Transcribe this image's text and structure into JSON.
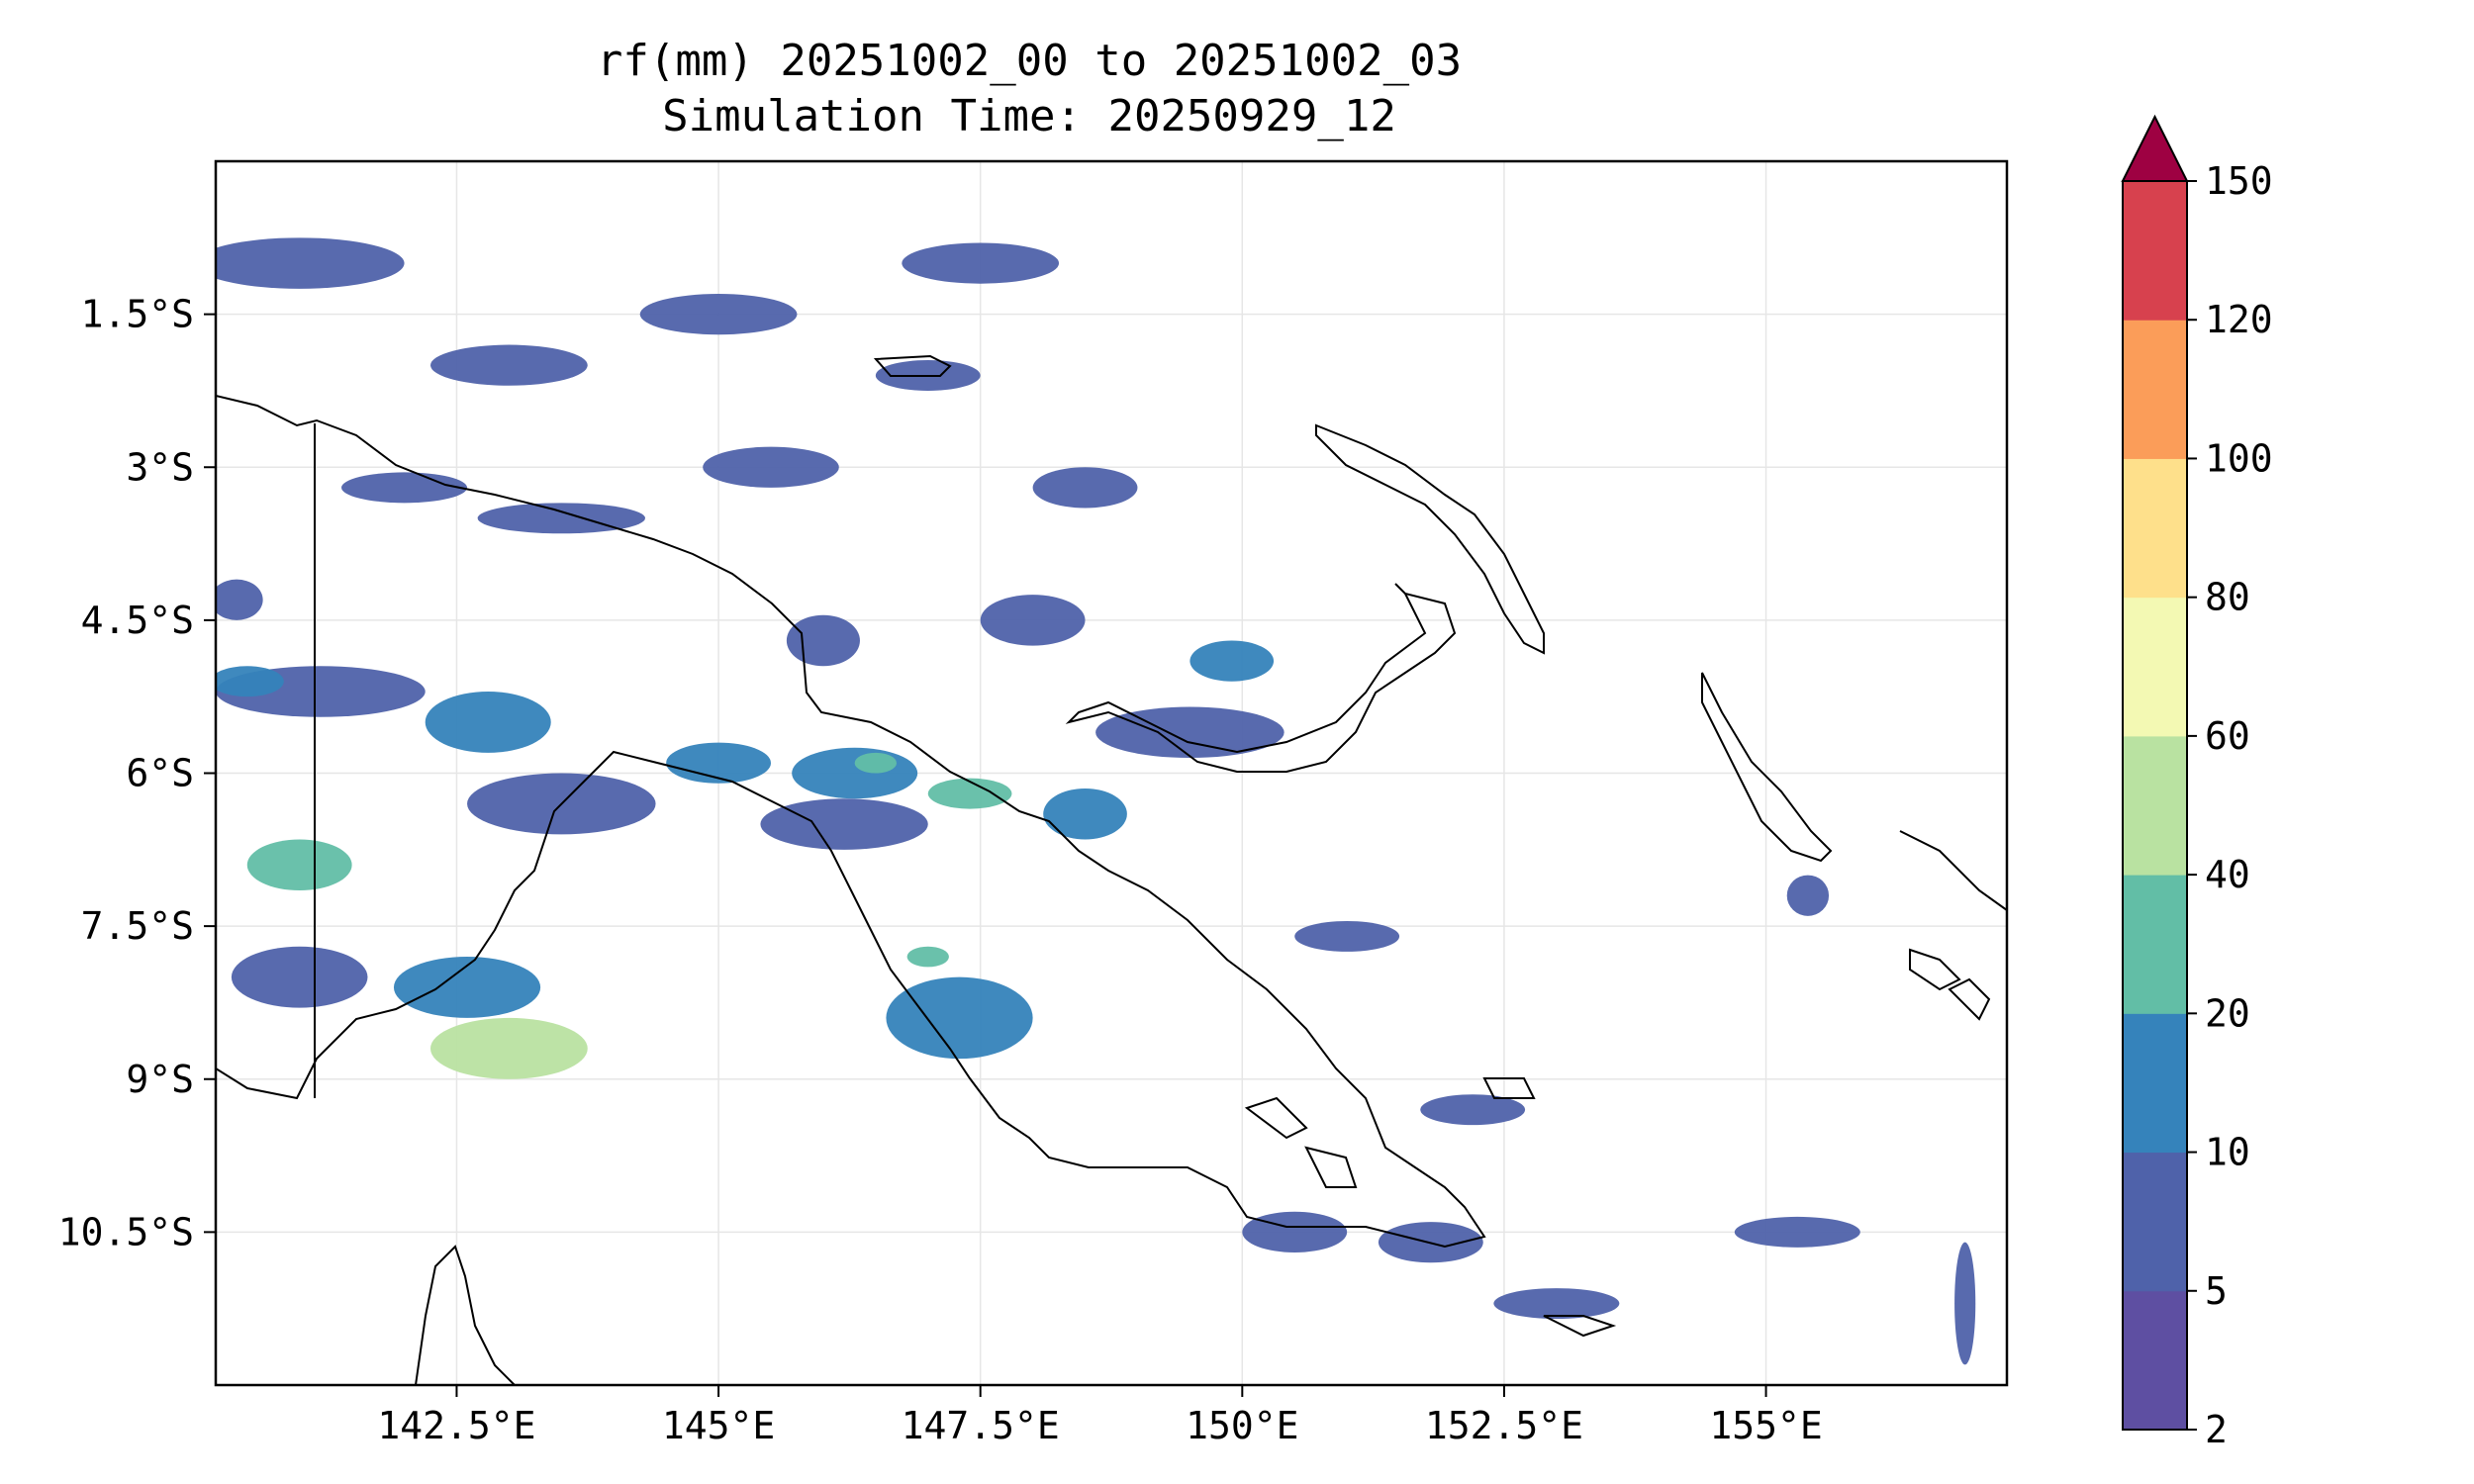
{
  "title": {
    "line1": "rf(mm) 20251002_00 to 20251002_03",
    "line2": "Simulation Time: 20250929_12"
  },
  "map": {
    "lon_range": [
      140.2,
      157.3
    ],
    "lat_range": [
      -12.0,
      0.0
    ],
    "x_ticks": [
      {
        "value": 142.5,
        "label": "142.5°E"
      },
      {
        "value": 145.0,
        "label": "145°E"
      },
      {
        "value": 147.5,
        "label": "147.5°E"
      },
      {
        "value": 150.0,
        "label": "150°E"
      },
      {
        "value": 152.5,
        "label": "152.5°E"
      },
      {
        "value": 155.0,
        "label": "155°E"
      }
    ],
    "y_ticks": [
      {
        "value": -1.5,
        "label": "1.5°S"
      },
      {
        "value": -3.0,
        "label": "3°S"
      },
      {
        "value": -4.5,
        "label": "4.5°S"
      },
      {
        "value": -6.0,
        "label": "6°S"
      },
      {
        "value": -7.5,
        "label": "7.5°S"
      },
      {
        "value": -9.0,
        "label": "9°S"
      },
      {
        "value": -10.5,
        "label": "10.5°S"
      }
    ],
    "grid": true,
    "coastline_color": "#000000"
  },
  "colorbar": {
    "levels": [
      "2",
      "5",
      "10",
      "20",
      "40",
      "60",
      "80",
      "100",
      "120",
      "150"
    ],
    "colors": [
      "#5e4fa2",
      "#4f62aa",
      "#3583bb",
      "#62bea6",
      "#b9e2a1",
      "#f3f9b3",
      "#fee08b",
      "#fb9d59",
      "#d7414e"
    ],
    "extend_color": "#9e0142",
    "extend": "max"
  },
  "chart_data": {
    "type": "heatmap",
    "title": "rf(mm) 20251002_00 to 20251002_03",
    "subtitle": "Simulation Time: 20250929_12",
    "xlabel": "",
    "ylabel": "",
    "xlim": [
      140.2,
      157.3
    ],
    "ylim": [
      -12.0,
      0.0
    ],
    "units": "mm",
    "cells": [
      {
        "lon": 141.0,
        "lat": -6.9,
        "w": 1.0,
        "h": 0.5,
        "band": 3
      },
      {
        "lon": 141.2,
        "lat": -5.2,
        "w": 2.0,
        "h": 0.5,
        "band": 1
      },
      {
        "lon": 142.8,
        "lat": -5.5,
        "w": 1.2,
        "h": 0.6,
        "band": 2
      },
      {
        "lon": 143.5,
        "lat": -6.3,
        "w": 1.8,
        "h": 0.6,
        "band": 1
      },
      {
        "lon": 145.0,
        "lat": -5.9,
        "w": 1.0,
        "h": 0.4,
        "band": 2
      },
      {
        "lon": 146.3,
        "lat": -6.0,
        "w": 1.2,
        "h": 0.5,
        "band": 2
      },
      {
        "lon": 146.5,
        "lat": -5.9,
        "w": 0.4,
        "h": 0.2,
        "band": 3
      },
      {
        "lon": 147.4,
        "lat": -6.2,
        "w": 0.8,
        "h": 0.3,
        "band": 3
      },
      {
        "lon": 146.2,
        "lat": -6.5,
        "w": 1.6,
        "h": 0.5,
        "band": 1
      },
      {
        "lon": 143.0,
        "lat": -8.7,
        "w": 1.5,
        "h": 0.6,
        "band": 4
      },
      {
        "lon": 142.6,
        "lat": -8.1,
        "w": 1.4,
        "h": 0.6,
        "band": 2
      },
      {
        "lon": 147.3,
        "lat": -8.4,
        "w": 1.4,
        "h": 0.8,
        "band": 2
      },
      {
        "lon": 147.0,
        "lat": -7.8,
        "w": 0.4,
        "h": 0.2,
        "band": 3
      },
      {
        "lon": 149.5,
        "lat": -5.6,
        "w": 1.8,
        "h": 0.5,
        "band": 1
      },
      {
        "lon": 149.9,
        "lat": -4.9,
        "w": 0.8,
        "h": 0.4,
        "band": 2
      },
      {
        "lon": 148.5,
        "lat": -6.4,
        "w": 0.8,
        "h": 0.5,
        "band": 2
      },
      {
        "lon": 148.0,
        "lat": -4.5,
        "w": 1.0,
        "h": 0.5,
        "band": 1
      },
      {
        "lon": 146.0,
        "lat": -4.7,
        "w": 0.7,
        "h": 0.5,
        "band": 1
      },
      {
        "lon": 141.0,
        "lat": -8.0,
        "w": 1.3,
        "h": 0.6,
        "band": 1
      },
      {
        "lon": 143.5,
        "lat": -3.5,
        "w": 1.6,
        "h": 0.3,
        "band": 1
      },
      {
        "lon": 142.0,
        "lat": -3.2,
        "w": 1.2,
        "h": 0.3,
        "band": 1
      },
      {
        "lon": 147.0,
        "lat": -2.1,
        "w": 1.0,
        "h": 0.3,
        "band": 1
      },
      {
        "lon": 147.5,
        "lat": -1.0,
        "w": 1.5,
        "h": 0.4,
        "band": 1
      },
      {
        "lon": 141.0,
        "lat": -1.0,
        "w": 2.0,
        "h": 0.5,
        "band": 1
      },
      {
        "lon": 143.0,
        "lat": -2.0,
        "w": 1.5,
        "h": 0.4,
        "band": 1
      },
      {
        "lon": 145.0,
        "lat": -1.5,
        "w": 1.5,
        "h": 0.4,
        "band": 1
      },
      {
        "lon": 148.5,
        "lat": -3.2,
        "w": 1.0,
        "h": 0.4,
        "band": 1
      },
      {
        "lon": 145.5,
        "lat": -3.0,
        "w": 1.3,
        "h": 0.4,
        "band": 1
      },
      {
        "lon": 150.5,
        "lat": -10.5,
        "w": 1.0,
        "h": 0.4,
        "band": 1
      },
      {
        "lon": 151.8,
        "lat": -10.6,
        "w": 1.0,
        "h": 0.4,
        "band": 1
      },
      {
        "lon": 153.0,
        "lat": -11.2,
        "w": 1.2,
        "h": 0.3,
        "band": 1
      },
      {
        "lon": 155.3,
        "lat": -10.5,
        "w": 1.2,
        "h": 0.3,
        "band": 1
      },
      {
        "lon": 156.9,
        "lat": -11.2,
        "w": 0.2,
        "h": 1.2,
        "band": 1
      },
      {
        "lon": 155.4,
        "lat": -7.2,
        "w": 0.4,
        "h": 0.4,
        "band": 1
      },
      {
        "lon": 151.0,
        "lat": -7.6,
        "w": 1.0,
        "h": 0.3,
        "band": 1
      },
      {
        "lon": 152.2,
        "lat": -9.3,
        "w": 1.0,
        "h": 0.3,
        "band": 1
      },
      {
        "lon": 140.4,
        "lat": -4.3,
        "w": 0.5,
        "h": 0.4,
        "band": 1
      },
      {
        "lon": 140.5,
        "lat": -5.1,
        "w": 0.7,
        "h": 0.3,
        "band": 2
      }
    ]
  }
}
